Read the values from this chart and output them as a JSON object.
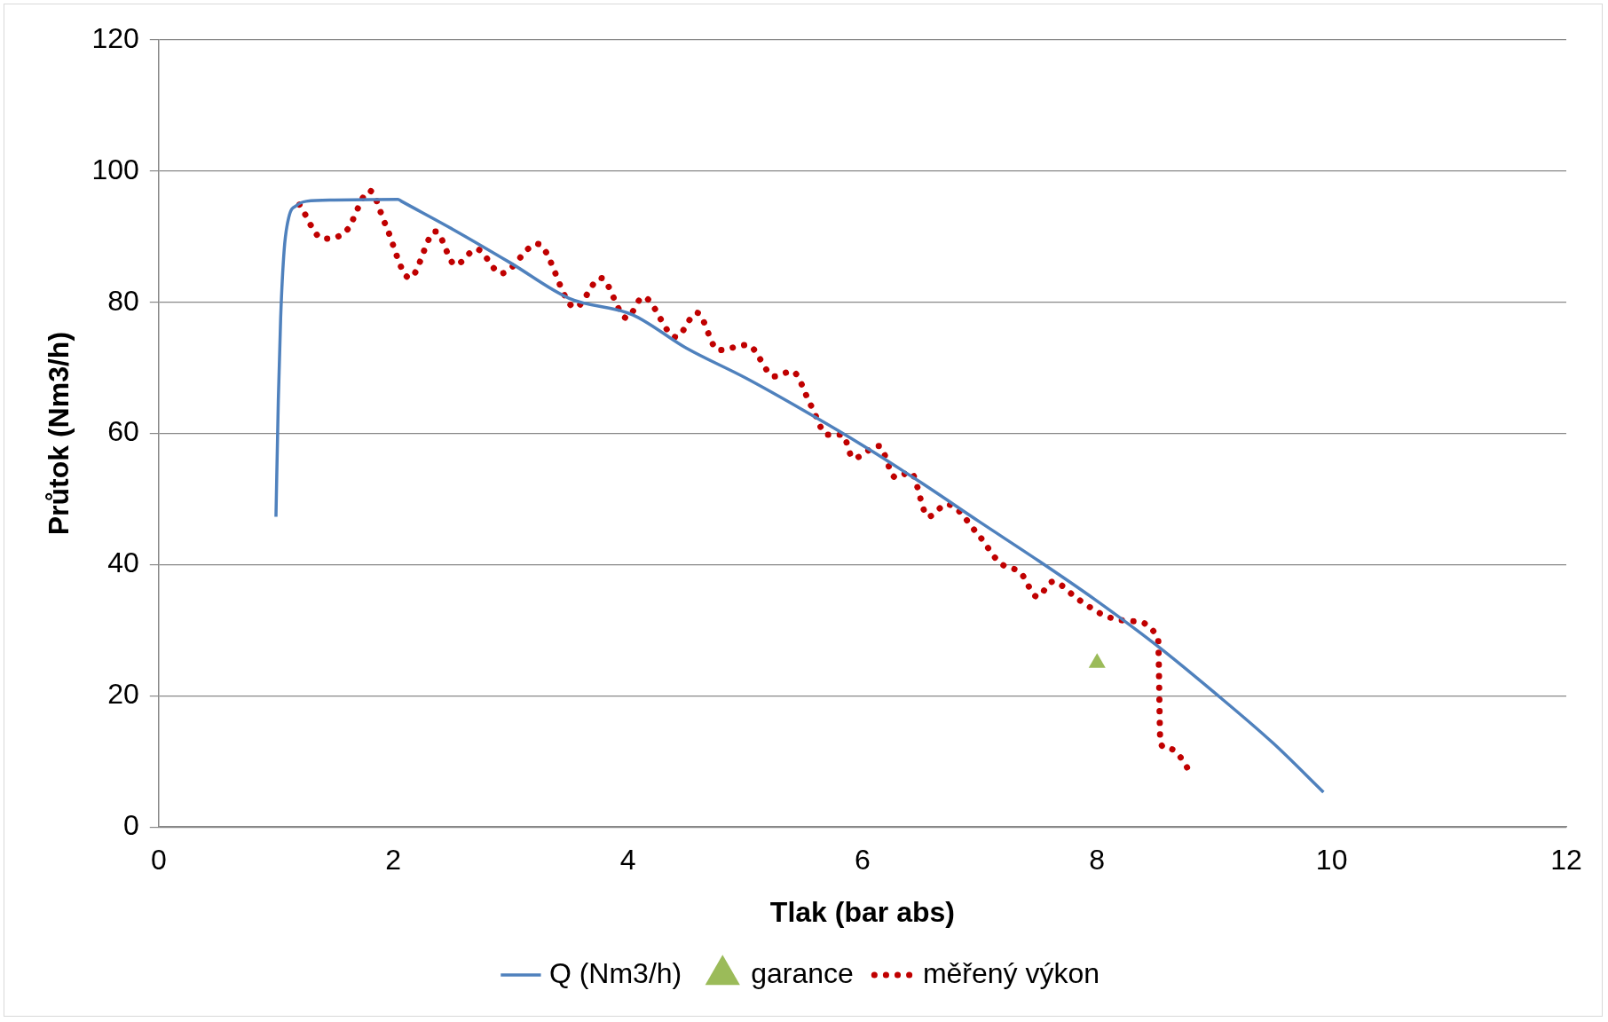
{
  "chart_data": {
    "type": "line",
    "xlabel": "Tlak (bar abs)",
    "ylabel": "Průtok (Nm3/h)",
    "xlim": [
      0,
      12
    ],
    "xticks": [
      0,
      2,
      4,
      6,
      8,
      10,
      12
    ],
    "ylim": [
      0,
      120
    ],
    "yticks": [
      0,
      20,
      40,
      60,
      80,
      100,
      120
    ],
    "grid": "y",
    "legend": "bottom",
    "series": [
      {
        "name": "Q (Nm3/h)",
        "color": "#4f81bd",
        "line_style": "solid",
        "marker": "none",
        "x": [
          1.0,
          1.02,
          1.04,
          1.07,
          1.11,
          1.18,
          1.26,
          1.5,
          2.04,
          2.07,
          2.5,
          3.0,
          3.5,
          4.04,
          4.5,
          5.0,
          5.5,
          6.01,
          6.5,
          7.0,
          7.5,
          7.98,
          8.5,
          9.0,
          9.5,
          9.93
        ],
        "values": [
          47.3,
          65,
          77.6,
          88,
          93,
          94.8,
          95.4,
          95.6,
          95.7,
          95.4,
          91.2,
          86,
          80.6,
          78.1,
          73,
          68.5,
          63.5,
          58.1,
          52.5,
          46.5,
          40.6,
          34.7,
          27.8,
          20.5,
          12.8,
          5.3
        ]
      },
      {
        "name": "garance",
        "type": "scatter",
        "color": "#9bbb59",
        "marker": "triangle",
        "x": [
          8
        ],
        "values": [
          25
        ]
      },
      {
        "name": "měřený výkon",
        "color": "#c00000",
        "line_style": "dotted",
        "marker": "none",
        "x": [
          1.2,
          1.4,
          1.6,
          1.8,
          1.93,
          2.14,
          2.36,
          2.53,
          2.71,
          2.92,
          3.23,
          3.55,
          3.77,
          3.99,
          4.13,
          4.41,
          4.59,
          4.77,
          5.02,
          5.25,
          5.4,
          5.56,
          5.7,
          5.83,
          5.92,
          6.14,
          6.28,
          6.41,
          6.56,
          6.72,
          6.99,
          7.17,
          7.35,
          7.49,
          7.62,
          7.84,
          8.07,
          8.29,
          8.52,
          8.54,
          8.6,
          8.67,
          8.81
        ],
        "values": [
          94.9,
          89.7,
          90.9,
          97,
          92,
          83.7,
          90.8,
          85.7,
          88.1,
          84.4,
          88.9,
          79.2,
          83.7,
          77.6,
          80.8,
          74.7,
          78.4,
          72.7,
          73.5,
          68.7,
          69.5,
          64.3,
          59.8,
          59.8,
          56.2,
          58.1,
          53.3,
          54.1,
          47.3,
          49.2,
          44.5,
          40.3,
          38.7,
          35.1,
          37.4,
          34.7,
          32.2,
          31.4,
          28.7,
          12.8,
          12,
          11.5,
          7.9
        ]
      }
    ]
  }
}
